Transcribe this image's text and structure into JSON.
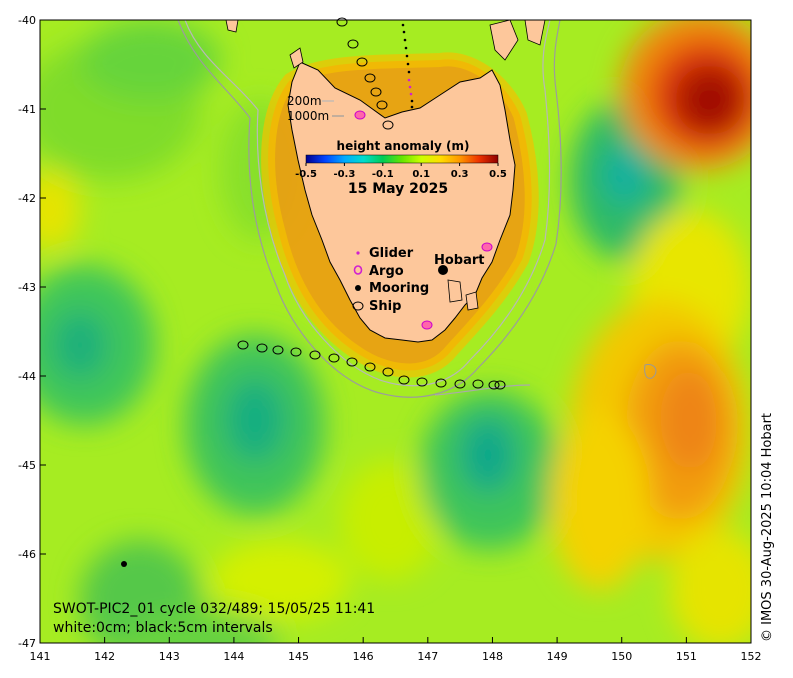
{
  "map": {
    "x_ticks": [
      "141",
      "142",
      "143",
      "144",
      "145",
      "146",
      "147",
      "148",
      "149",
      "150",
      "151",
      "152"
    ],
    "y_ticks": [
      "-40",
      "-41",
      "-42",
      "-43",
      "-44",
      "-45",
      "-46",
      "-47"
    ],
    "lon_range": [
      141,
      152
    ],
    "lat_range": [
      -47,
      -40
    ],
    "colors": {
      "land": "#fdc79b",
      "frame": "#000000"
    }
  },
  "colorbar": {
    "title": "height anomaly (m)",
    "tick_labels": [
      "-0.5",
      "-0.3",
      "-0.1",
      "0.1",
      "0.3",
      "0.5"
    ],
    "range": [
      -0.5,
      0.5
    ],
    "colors": [
      "#00008f",
      "#0066ff",
      "#00ccff",
      "#00e0a0",
      "#00cc33",
      "#66e600",
      "#ccff00",
      "#ffdd00",
      "#ff9900",
      "#ff4400",
      "#cc0000",
      "#8f0000"
    ]
  },
  "date_label": "15 May 2025",
  "depth_legend": {
    "contour_1": "200m",
    "contour_2": "1000m"
  },
  "legend": {
    "glider": "Glider",
    "argo": "Argo",
    "mooring": "Mooring",
    "ship": "Ship"
  },
  "place_label": "Hobart",
  "caption": {
    "line1": "SWOT-PIC2_01 cycle 032/489; 15/05/25 11:41",
    "line2": "white:0cm; black:5cm intervals"
  },
  "copyright": "© IMOS 30-Aug-2025 10:04 Hobart"
}
